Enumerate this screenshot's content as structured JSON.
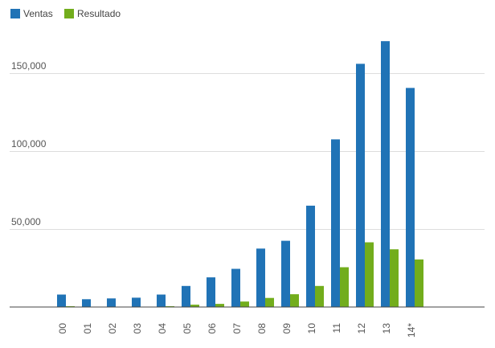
{
  "chart_data": {
    "type": "bar",
    "categories": [
      "00",
      "01",
      "02",
      "03",
      "04",
      "05",
      "06",
      "07",
      "08",
      "09",
      "10",
      "11",
      "12",
      "13",
      "14*"
    ],
    "series": [
      {
        "name": "Ventas",
        "color": "#2073b6",
        "values": [
          8000,
          5000,
          5500,
          6000,
          8000,
          13500,
          19000,
          24500,
          37500,
          42500,
          65000,
          107500,
          156000,
          170500,
          140500
        ]
      },
      {
        "name": "Resultado",
        "color": "#72ad1c",
        "values": [
          500,
          0,
          0,
          0,
          500,
          1500,
          2000,
          3500,
          5800,
          8200,
          13500,
          25500,
          41500,
          37000,
          30500
        ]
      }
    ],
    "yticks": [
      {
        "value": 50000,
        "label": "50,000"
      },
      {
        "value": 100000,
        "label": "100,000"
      },
      {
        "value": 150000,
        "label": "150,000"
      }
    ],
    "ylim": [
      0,
      150000
    ],
    "grid": true,
    "legend_position": "top-left",
    "title": "",
    "xlabel": "",
    "ylabel": ""
  }
}
